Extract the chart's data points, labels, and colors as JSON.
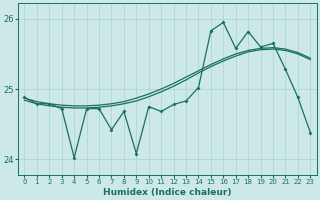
{
  "xlabel": "Humidex (Indice chaleur)",
  "bg_color": "#cce8e8",
  "line_color": "#1a7060",
  "grid_color": "#aad0d0",
  "xlim": [
    -0.5,
    23.5
  ],
  "ylim": [
    23.78,
    26.22
  ],
  "yticks": [
    24,
    25,
    26
  ],
  "xticks": [
    0,
    1,
    2,
    3,
    4,
    5,
    6,
    7,
    8,
    9,
    10,
    11,
    12,
    13,
    14,
    15,
    16,
    17,
    18,
    19,
    20,
    21,
    22,
    23
  ],
  "smooth1": [
    24.87,
    24.82,
    24.79,
    24.77,
    24.76,
    24.76,
    24.77,
    24.79,
    24.82,
    24.87,
    24.93,
    25.0,
    25.08,
    25.17,
    25.26,
    25.35,
    25.43,
    25.5,
    25.55,
    25.58,
    25.59,
    25.57,
    25.52,
    25.44
  ],
  "smooth2": [
    24.84,
    24.79,
    24.76,
    24.74,
    24.73,
    24.73,
    24.74,
    24.76,
    24.79,
    24.83,
    24.89,
    24.96,
    25.04,
    25.13,
    25.23,
    25.32,
    25.4,
    25.47,
    25.53,
    25.56,
    25.57,
    25.55,
    25.5,
    25.42
  ],
  "jagged_x": [
    0,
    1,
    2,
    3,
    4,
    5,
    6,
    7,
    8,
    9,
    10,
    11,
    12,
    13,
    14,
    15,
    16,
    17,
    18,
    19,
    20,
    21,
    22,
    23
  ],
  "jagged_y": [
    24.88,
    24.79,
    24.79,
    24.72,
    24.02,
    24.72,
    24.72,
    24.42,
    24.68,
    24.08,
    24.75,
    24.68,
    24.78,
    24.83,
    25.02,
    25.83,
    25.95,
    25.58,
    25.82,
    25.6,
    25.65,
    25.28,
    24.88,
    24.38
  ]
}
